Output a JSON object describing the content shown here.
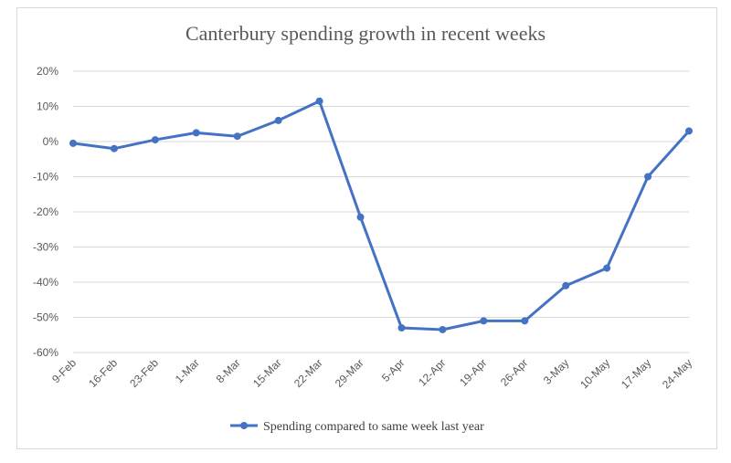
{
  "chart_data": {
    "type": "line",
    "title": "Canterbury spending growth in recent weeks",
    "xlabel": "",
    "ylabel": "",
    "categories": [
      "9-Feb",
      "16-Feb",
      "23-Feb",
      "1-Mar",
      "8-Mar",
      "15-Mar",
      "22-Mar",
      "29-Mar",
      "5-Apr",
      "12-Apr",
      "19-Apr",
      "26-Apr",
      "3-May",
      "10-May",
      "17-May",
      "24-May"
    ],
    "series": [
      {
        "name": "Spending compared to same week last year",
        "color": "#4472c4",
        "values": [
          -0.5,
          -2,
          0.5,
          2.5,
          1.5,
          6,
          11.5,
          -21.5,
          -53,
          -53.5,
          -51,
          -51,
          -41,
          -36,
          -10,
          3
        ]
      }
    ],
    "ylim": [
      -60,
      20
    ],
    "yticks": [
      20,
      10,
      0,
      -10,
      -20,
      -30,
      -40,
      -50,
      -60
    ],
    "ytick_labels": [
      "20%",
      "10%",
      "0%",
      "-10%",
      "-20%",
      "-30%",
      "-40%",
      "-50%",
      "-60%"
    ],
    "grid": true,
    "legend": "bottom"
  }
}
